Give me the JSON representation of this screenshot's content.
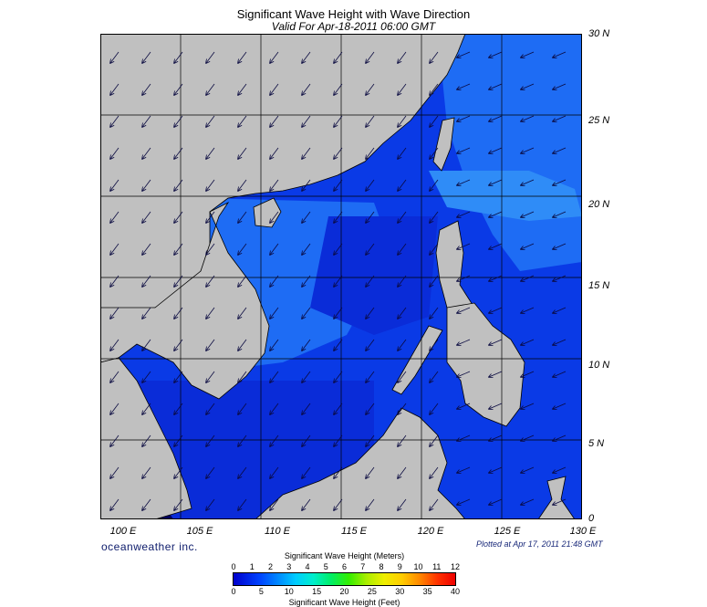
{
  "header": {
    "title": "Significant Wave Height with Wave Direction",
    "subtitle": "Valid For Apr-18-2011 06:00 GMT"
  },
  "map": {
    "lat_labels": [
      "30 N",
      "25 N",
      "20 N",
      "15 N",
      "10 N",
      "5 N",
      "0"
    ],
    "lon_labels": [
      "100 E",
      "105 E",
      "110 E",
      "115 E",
      "120 E",
      "125 E",
      "130 E"
    ],
    "extent": {
      "lon": [
        100,
        130
      ],
      "lat": [
        0,
        30
      ]
    },
    "colors": {
      "land": "#c0c0c0",
      "deep": "#0000d8",
      "mid": "#0a3ae6",
      "light": "#1e6cf4",
      "lighter": "#2f8cf7"
    }
  },
  "footer": {
    "brand": "oceanweather inc.",
    "plotted": "Plotted at Apr 17, 2011 21:48 GMT"
  },
  "colorbar": {
    "title_top": "Significant Wave Height (Meters)",
    "meters": [
      "0",
      "1",
      "2",
      "3",
      "4",
      "5",
      "6",
      "7",
      "8",
      "9",
      "10",
      "11",
      "12"
    ],
    "feet": [
      "0",
      "5",
      "10",
      "15",
      "20",
      "25",
      "30",
      "35",
      "40"
    ],
    "title_bottom": "Significant Wave Height (Feet)"
  }
}
